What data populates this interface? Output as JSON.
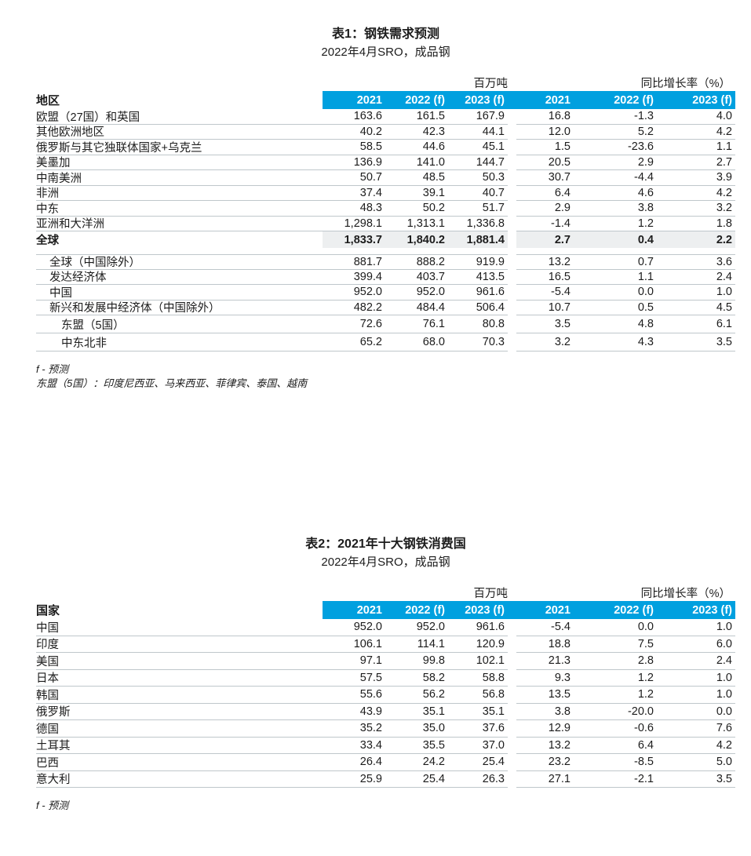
{
  "colors": {
    "header_blue": "#00a0df",
    "row_line": "#bfc7cb",
    "highlight_bg": "#edeff0",
    "text": "#1c1c1c",
    "header_text": "#ffffff"
  },
  "table1": {
    "title": "表1：钢铁需求预测",
    "subtitle": "2022年4月SRO，成品钢",
    "group_headers": {
      "tonnage": "百万吨",
      "growth": "同比增长率（%）"
    },
    "row_label_header": "地区",
    "columns": [
      "2021",
      "2022 (f)",
      "2023 (f)",
      "2021",
      "2022 (f)",
      "2023 (f)"
    ],
    "rows": [
      {
        "label": "欧盟（27国）和英国",
        "indent": 0,
        "values": [
          "163.6",
          "161.5",
          "167.9",
          "16.8",
          "-1.3",
          "4.0"
        ]
      },
      {
        "label": "其他欧洲地区",
        "indent": 0,
        "values": [
          "40.2",
          "42.3",
          "44.1",
          "12.0",
          "5.2",
          "4.2"
        ]
      },
      {
        "label": "俄罗斯与其它独联体国家+乌克兰",
        "indent": 0,
        "values": [
          "58.5",
          "44.6",
          "45.1",
          "1.5",
          "-23.6",
          "1.1"
        ]
      },
      {
        "label": "美墨加",
        "indent": 0,
        "values": [
          "136.9",
          "141.0",
          "144.7",
          "20.5",
          "2.9",
          "2.7"
        ]
      },
      {
        "label": "中南美洲",
        "indent": 0,
        "values": [
          "50.7",
          "48.5",
          "50.3",
          "30.7",
          "-4.4",
          "3.9"
        ]
      },
      {
        "label": "非洲",
        "indent": 0,
        "values": [
          "37.4",
          "39.1",
          "40.7",
          "6.4",
          "4.6",
          "4.2"
        ]
      },
      {
        "label": "中东",
        "indent": 0,
        "values": [
          "48.3",
          "50.2",
          "51.7",
          "2.9",
          "3.8",
          "3.2"
        ]
      },
      {
        "label": "亚洲和大洋洲",
        "indent": 0,
        "values": [
          "1,298.1",
          "1,313.1",
          "1,336.8",
          "-1.4",
          "1.2",
          "1.8"
        ]
      },
      {
        "label": "全球",
        "indent": 0,
        "bold": true,
        "highlight": true,
        "values": [
          "1,833.7",
          "1,840.2",
          "1,881.4",
          "2.7",
          "0.4",
          "2.2"
        ]
      },
      {
        "label": "全球（中国除外）",
        "indent": 1,
        "gap_before": true,
        "values": [
          "881.7",
          "888.2",
          "919.9",
          "13.2",
          "0.7",
          "3.6"
        ]
      },
      {
        "label": "发达经济体",
        "indent": 1,
        "values": [
          "399.4",
          "403.7",
          "413.5",
          "16.5",
          "1.1",
          "2.4"
        ]
      },
      {
        "label": "中国",
        "indent": 1,
        "values": [
          "952.0",
          "952.0",
          "961.6",
          "-5.4",
          "0.0",
          "1.0"
        ]
      },
      {
        "label": "新兴和发展中经济体（中国除外）",
        "indent": 1,
        "values": [
          "482.2",
          "484.4",
          "506.4",
          "10.7",
          "0.5",
          "4.5"
        ]
      },
      {
        "label": "东盟（5国）",
        "indent": 2,
        "tall": true,
        "values": [
          "72.6",
          "76.1",
          "80.8",
          "3.5",
          "4.8",
          "6.1"
        ]
      },
      {
        "label": "中东北非",
        "indent": 2,
        "tall": true,
        "values": [
          "65.2",
          "68.0",
          "70.3",
          "3.2",
          "4.3",
          "3.5"
        ]
      }
    ],
    "footnotes": [
      "f - 预测",
      "东盟（5国）：印度尼西亚、马来西亚、菲律宾、泰国、越南"
    ]
  },
  "table2": {
    "title": "表2：2021年十大钢铁消费国",
    "subtitle": "2022年4月SRO，成品钢",
    "group_headers": {
      "tonnage": "百万吨",
      "growth": "同比增长率（%）"
    },
    "row_label_header": "国家",
    "columns": [
      "2021",
      "2022 (f)",
      "2023 (f)",
      "2021",
      "2022 (f)",
      "2023 (f)"
    ],
    "rows": [
      {
        "label": "中国",
        "t2": true,
        "values": [
          "952.0",
          "952.0",
          "961.6",
          "-5.4",
          "0.0",
          "1.0"
        ]
      },
      {
        "label": "印度",
        "t2": true,
        "values": [
          "106.1",
          "114.1",
          "120.9",
          "18.8",
          "7.5",
          "6.0"
        ]
      },
      {
        "label": "美国",
        "t2": true,
        "values": [
          "97.1",
          "99.8",
          "102.1",
          "21.3",
          "2.8",
          "2.4"
        ]
      },
      {
        "label": "日本",
        "t2": true,
        "values": [
          "57.5",
          "58.2",
          "58.8",
          "9.3",
          "1.2",
          "1.0"
        ]
      },
      {
        "label": "韩国",
        "t2": true,
        "values": [
          "55.6",
          "56.2",
          "56.8",
          "13.5",
          "1.2",
          "1.0"
        ]
      },
      {
        "label": "俄罗斯",
        "t2": true,
        "values": [
          "43.9",
          "35.1",
          "35.1",
          "3.8",
          "-20.0",
          "0.0"
        ]
      },
      {
        "label": "德国",
        "t2": true,
        "values": [
          "35.2",
          "35.0",
          "37.6",
          "12.9",
          "-0.6",
          "7.6"
        ]
      },
      {
        "label": "土耳其",
        "t2": true,
        "values": [
          "33.4",
          "35.5",
          "37.0",
          "13.2",
          "6.4",
          "4.2"
        ]
      },
      {
        "label": "巴西",
        "t2": true,
        "values": [
          "26.4",
          "24.2",
          "25.4",
          "23.2",
          "-8.5",
          "5.0"
        ]
      },
      {
        "label": "意大利",
        "t2": true,
        "values": [
          "25.9",
          "25.4",
          "26.3",
          "27.1",
          "-2.1",
          "3.5"
        ]
      }
    ],
    "footnotes": [
      "f - 预测"
    ]
  }
}
